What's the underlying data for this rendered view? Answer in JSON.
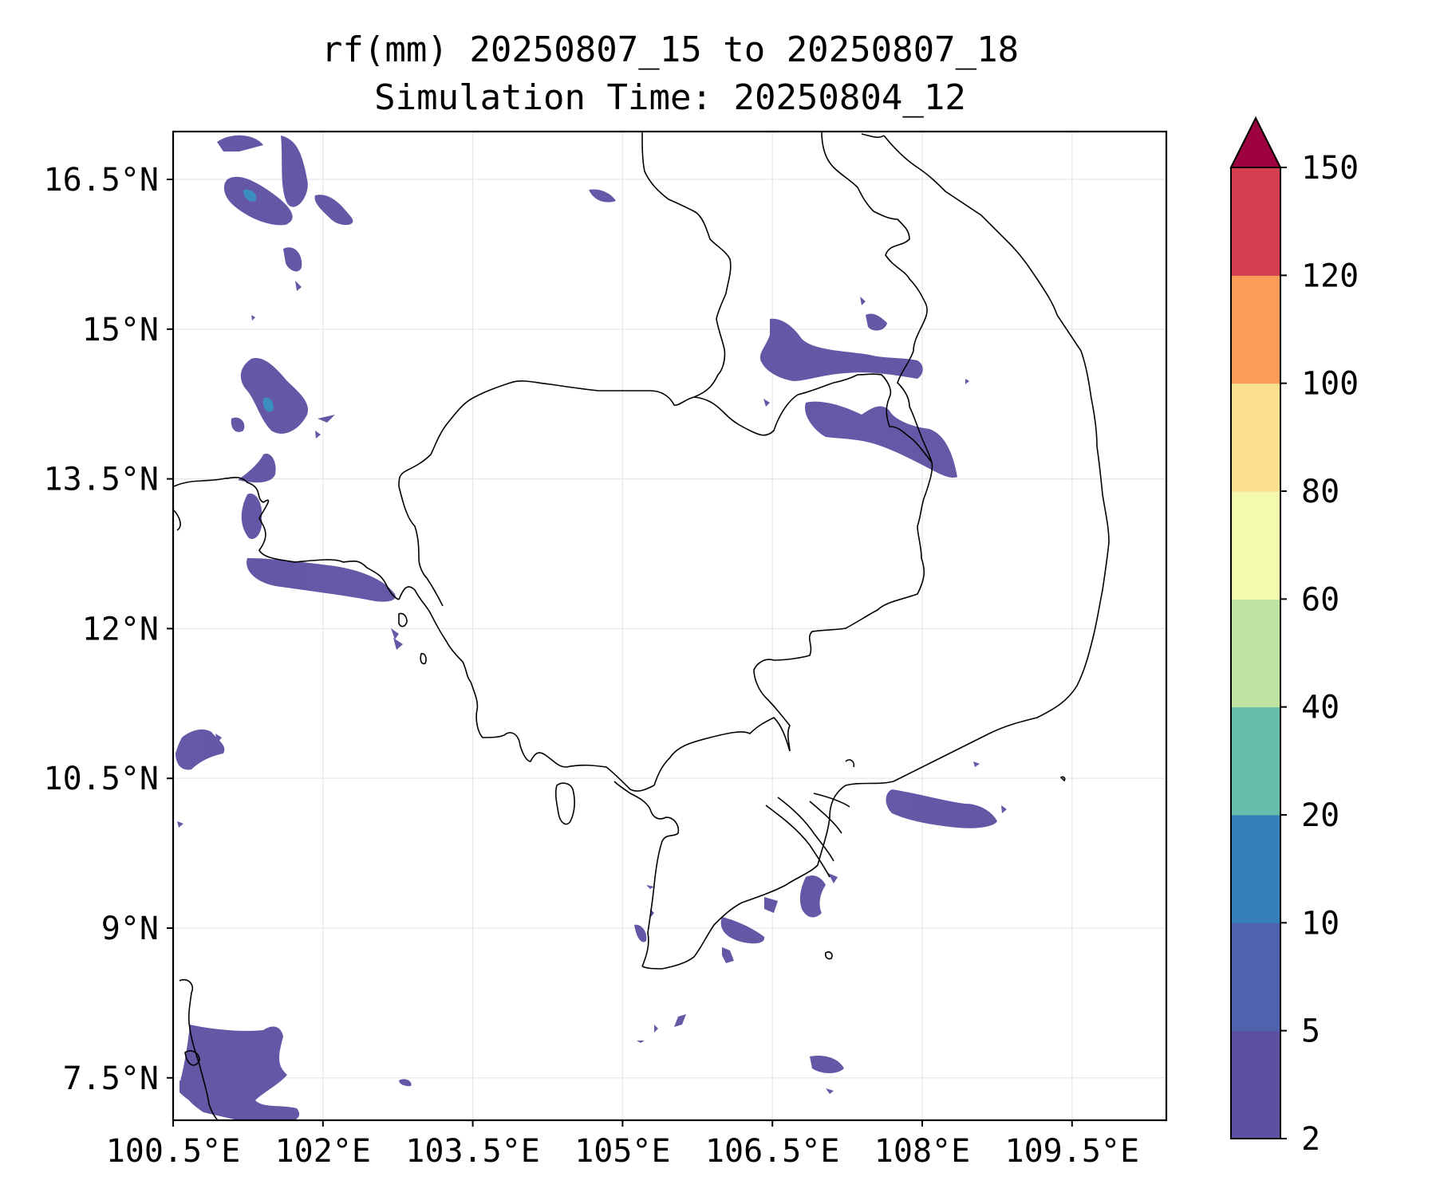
{
  "title": {
    "line1": "rf(mm) 20250807_15 to 20250807_18",
    "line2": "Simulation Time: 20250804_12"
  },
  "map": {
    "lon_range": [
      100.5,
      109.5
    ],
    "lat_range": [
      7.5,
      16.5
    ],
    "x_ticks": [
      "100.5°E",
      "102°E",
      "103.5°E",
      "105°E",
      "106.5°E",
      "108°E",
      "109.5°E"
    ],
    "y_ticks": [
      "16.5°N",
      "15°N",
      "13.5°N",
      "12°N",
      "10.5°N",
      "9°N",
      "7.5°N"
    ],
    "grid": true,
    "precip_colour": "#5e4fa2",
    "precip_colour_mid": "#3288bd"
  },
  "colorbar": {
    "levels": [
      "2",
      "5",
      "10",
      "20",
      "40",
      "60",
      "80",
      "100",
      "120",
      "150"
    ],
    "colors": [
      "#5e4fa2",
      "#4f62ad",
      "#3580bb",
      "#65bfaa",
      "#bce4a0",
      "#f3faad",
      "#fbe08f",
      "#f99d59",
      "#d53e4f"
    ],
    "extend_color": "#9e0142",
    "extend": "max"
  }
}
